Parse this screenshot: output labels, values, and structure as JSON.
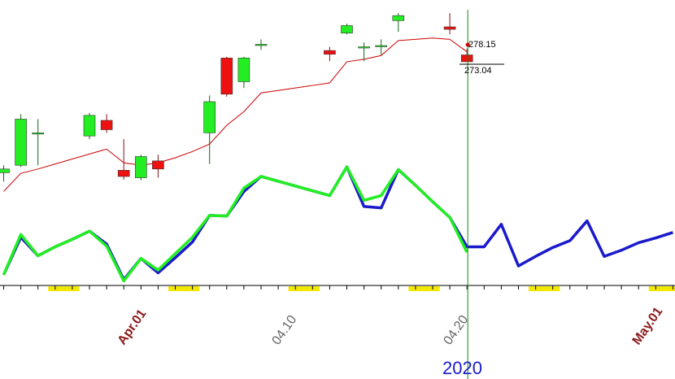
{
  "chart_data": {
    "type": "candlestick",
    "year_label": "2020",
    "last_close_label": "278.15",
    "last_price_label": "273.04",
    "colors": {
      "up": "#22ee22",
      "down": "#ee1111",
      "ma": "#cc0000",
      "osc_hist": "#1a1acc",
      "osc_fit": "#22ee22",
      "cursor": "#118811",
      "weekend": "#f2e800",
      "text_month": "#8b1a1a",
      "text_date": "#666666"
    },
    "date_labels": [
      {
        "text": "Apr.01",
        "x": 7,
        "color": "month"
      },
      {
        "text": "04.10",
        "x": 16,
        "color": "date"
      },
      {
        "text": "04.20",
        "x": 26,
        "color": "date"
      },
      {
        "text": "May.01",
        "x": 37,
        "color": "month"
      }
    ],
    "candles": [
      {
        "x": 0,
        "o": 136,
        "h": 148,
        "l": 122,
        "c": 142
      },
      {
        "x": 1,
        "o": 148,
        "h": 230,
        "l": 145,
        "c": 222
      },
      {
        "x": 2,
        "o": 200,
        "h": 222,
        "l": 148,
        "c": 200
      },
      {
        "x": 5,
        "o": 195,
        "h": 232,
        "l": 190,
        "c": 228
      },
      {
        "x": 6,
        "o": 220,
        "h": 230,
        "l": 200,
        "c": 205
      },
      {
        "x": 7,
        "o": 140,
        "h": 190,
        "l": 125,
        "c": 130
      },
      {
        "x": 8,
        "o": 128,
        "h": 165,
        "l": 124,
        "c": 162
      },
      {
        "x": 9,
        "o": 155,
        "h": 165,
        "l": 128,
        "c": 142
      },
      {
        "x": 12,
        "o": 200,
        "h": 260,
        "l": 150,
        "c": 250
      },
      {
        "x": 13,
        "o": 320,
        "h": 322,
        "l": 258,
        "c": 262
      },
      {
        "x": 14,
        "o": 282,
        "h": 322,
        "l": 272,
        "c": 320
      },
      {
        "x": 15,
        "o": 340,
        "h": 350,
        "l": 333,
        "c": 342
      },
      {
        "x": 19,
        "o": 332,
        "h": 338,
        "l": 315,
        "c": 326
      },
      {
        "x": 20,
        "o": 360,
        "h": 375,
        "l": 358,
        "c": 372
      },
      {
        "x": 21,
        "o": 338,
        "h": 345,
        "l": 315,
        "c": 338
      },
      {
        "x": 22,
        "o": 340,
        "h": 350,
        "l": 325,
        "c": 340
      },
      {
        "x": 23,
        "o": 380,
        "h": 392,
        "l": 362,
        "c": 388
      },
      {
        "x": 26,
        "o": 370,
        "h": 392,
        "l": 358,
        "c": 366
      },
      {
        "x": 27,
        "o": 325,
        "h": 335,
        "l": 315,
        "c": 314
      }
    ],
    "ma_line": [
      {
        "x": 0,
        "y": 106
      },
      {
        "x": 1,
        "y": 135
      },
      {
        "x": 2,
        "y": 142
      },
      {
        "x": 3,
        "y": 150
      },
      {
        "x": 4,
        "y": 158
      },
      {
        "x": 5,
        "y": 166
      },
      {
        "x": 6,
        "y": 174
      },
      {
        "x": 7,
        "y": 152
      },
      {
        "x": 8,
        "y": 148
      },
      {
        "x": 9,
        "y": 152
      },
      {
        "x": 10,
        "y": 160
      },
      {
        "x": 11,
        "y": 170
      },
      {
        "x": 12,
        "y": 182
      },
      {
        "x": 13,
        "y": 212
      },
      {
        "x": 14,
        "y": 234
      },
      {
        "x": 15,
        "y": 264
      },
      {
        "x": 16,
        "y": 268
      },
      {
        "x": 17,
        "y": 272
      },
      {
        "x": 18,
        "y": 276
      },
      {
        "x": 19,
        "y": 280
      },
      {
        "x": 20,
        "y": 314
      },
      {
        "x": 21,
        "y": 318
      },
      {
        "x": 22,
        "y": 324
      },
      {
        "x": 23,
        "y": 348
      },
      {
        "x": 24,
        "y": 350
      },
      {
        "x": 25,
        "y": 352
      },
      {
        "x": 26,
        "y": 350
      },
      {
        "x": 27,
        "y": 330
      }
    ],
    "osc_blue": [
      {
        "x": 0,
        "y": 12
      },
      {
        "x": 1,
        "y": 67
      },
      {
        "x": 2,
        "y": 40
      },
      {
        "x": 3,
        "y": 53
      },
      {
        "x": 4,
        "y": 64
      },
      {
        "x": 5,
        "y": 76
      },
      {
        "x": 6,
        "y": 57
      },
      {
        "x": 7,
        "y": 5
      },
      {
        "x": 8,
        "y": 36
      },
      {
        "x": 9,
        "y": 15
      },
      {
        "x": 10,
        "y": 37
      },
      {
        "x": 11,
        "y": 60
      },
      {
        "x": 12,
        "y": 99
      },
      {
        "x": 13,
        "y": 98
      },
      {
        "x": 14,
        "y": 134
      },
      {
        "x": 15,
        "y": 156
      },
      {
        "x": 16,
        "y": 149
      },
      {
        "x": 17,
        "y": 142
      },
      {
        "x": 18,
        "y": 135
      },
      {
        "x": 19,
        "y": 128
      },
      {
        "x": 20,
        "y": 170
      },
      {
        "x": 21,
        "y": 112
      },
      {
        "x": 22,
        "y": 110
      },
      {
        "x": 23,
        "y": 166
      },
      {
        "x": 24,
        "y": 143
      },
      {
        "x": 25,
        "y": 119
      },
      {
        "x": 26,
        "y": 96
      },
      {
        "x": 27,
        "y": 53
      },
      {
        "x": 28,
        "y": 53
      },
      {
        "x": 29,
        "y": 86
      },
      {
        "x": 30,
        "y": 25
      },
      {
        "x": 31,
        "y": 39
      },
      {
        "x": 32,
        "y": 52
      },
      {
        "x": 33,
        "y": 62
      },
      {
        "x": 34,
        "y": 91
      },
      {
        "x": 35,
        "y": 39
      },
      {
        "x": 36,
        "y": 48
      },
      {
        "x": 37,
        "y": 59
      },
      {
        "x": 38,
        "y": 66
      },
      {
        "x": 39,
        "y": 74
      }
    ],
    "osc_green": [
      {
        "x": 0,
        "y": 12
      },
      {
        "x": 1,
        "y": 71
      },
      {
        "x": 2,
        "y": 40
      },
      {
        "x": 3,
        "y": 53
      },
      {
        "x": 4,
        "y": 64
      },
      {
        "x": 5,
        "y": 76
      },
      {
        "x": 6,
        "y": 54
      },
      {
        "x": 7,
        "y": 3
      },
      {
        "x": 8,
        "y": 36
      },
      {
        "x": 9,
        "y": 19
      },
      {
        "x": 10,
        "y": 43
      },
      {
        "x": 11,
        "y": 67
      },
      {
        "x": 12,
        "y": 99
      },
      {
        "x": 13,
        "y": 98
      },
      {
        "x": 14,
        "y": 139
      },
      {
        "x": 15,
        "y": 156
      },
      {
        "x": 16,
        "y": 149
      },
      {
        "x": 17,
        "y": 142
      },
      {
        "x": 18,
        "y": 135
      },
      {
        "x": 19,
        "y": 128
      },
      {
        "x": 20,
        "y": 170
      },
      {
        "x": 21,
        "y": 121
      },
      {
        "x": 22,
        "y": 128
      },
      {
        "x": 23,
        "y": 166
      },
      {
        "x": 24,
        "y": 143
      },
      {
        "x": 25,
        "y": 119
      },
      {
        "x": 26,
        "y": 96
      },
      {
        "x": 27,
        "y": 45
      }
    ],
    "price_range": [
      100,
      400
    ],
    "osc_range": [
      0,
      200
    ],
    "bar_count": 40,
    "cursor_bar": 27,
    "weekend_marks": [
      [
        2.5,
        4.5
      ],
      [
        9.5,
        11.5
      ],
      [
        16.5,
        18.5
      ],
      [
        23.5,
        25.5
      ],
      [
        30.5,
        32.5
      ],
      [
        37.5,
        39.5
      ]
    ]
  }
}
